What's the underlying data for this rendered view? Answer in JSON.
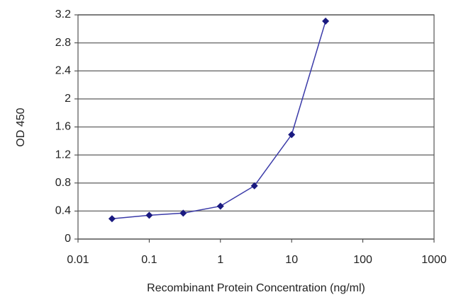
{
  "chart_data": {
    "type": "line",
    "x_label": "Recombinant Protein Concentration (ng/ml)",
    "y_label": "OD 450",
    "x": [
      0.03,
      0.1,
      0.3,
      1,
      3,
      10,
      30
    ],
    "series": [
      {
        "color": "#3a3aa8",
        "values": [
          0.29,
          0.34,
          0.37,
          0.47,
          0.76,
          1.49,
          3.11
        ]
      }
    ],
    "xlim": [
      0.01,
      1000
    ],
    "xticks": [
      0.01,
      0.1,
      1,
      10,
      100,
      1000
    ],
    "x_log": true,
    "ylim": [
      0,
      3.2
    ],
    "yticks": [
      0,
      0.4,
      0.8,
      1.2,
      1.6,
      2,
      2.4,
      2.8,
      3.2
    ],
    "grid": true
  }
}
